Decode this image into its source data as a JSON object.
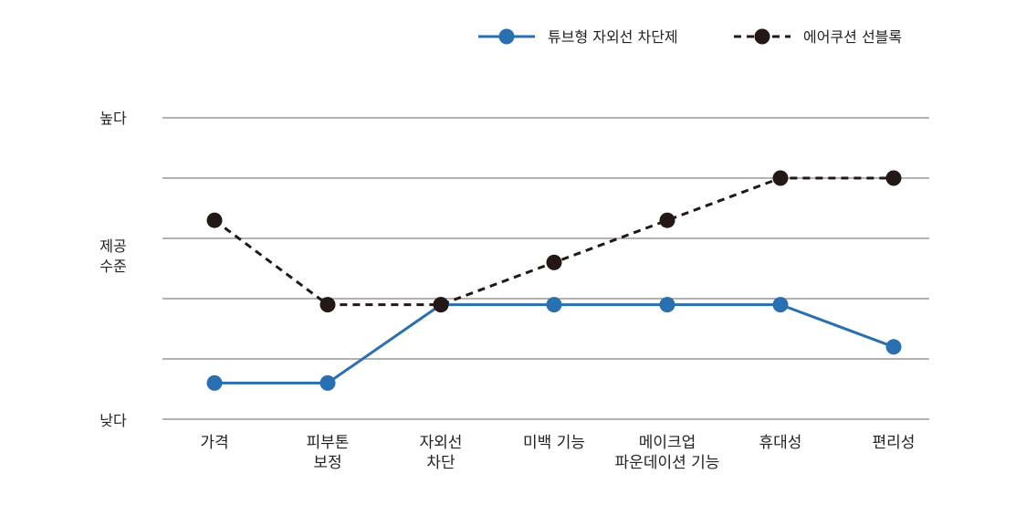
{
  "chart_data": {
    "type": "line",
    "title": "",
    "xlabel": "",
    "ylabel": "",
    "categories": [
      [
        "가격"
      ],
      [
        "피부톤",
        "보정"
      ],
      [
        "자외선",
        "차단"
      ],
      [
        "미백 기능"
      ],
      [
        "메이크업",
        "파운데이션 기능"
      ],
      [
        "휴대성"
      ],
      [
        "편리성"
      ]
    ],
    "y_axis": {
      "min": 0,
      "max": 5,
      "gridlines": [
        0,
        1,
        2,
        3,
        4,
        5
      ]
    },
    "y_labels": {
      "high": "높다",
      "mid": [
        "제공",
        "수준"
      ],
      "low": "낮다"
    },
    "series": [
      {
        "name": "튜브형 자외선 차단제",
        "color": "#2a6fb0",
        "dash": false,
        "values": [
          0.6,
          0.6,
          1.9,
          1.9,
          1.9,
          1.9,
          1.2
        ]
      },
      {
        "name": "에어쿠션 선블록",
        "color": "#231815",
        "dash": true,
        "values": [
          3.3,
          1.9,
          1.9,
          2.6,
          3.3,
          4.0,
          4.0
        ]
      }
    ],
    "legend_position": "top-right",
    "grid": true
  }
}
